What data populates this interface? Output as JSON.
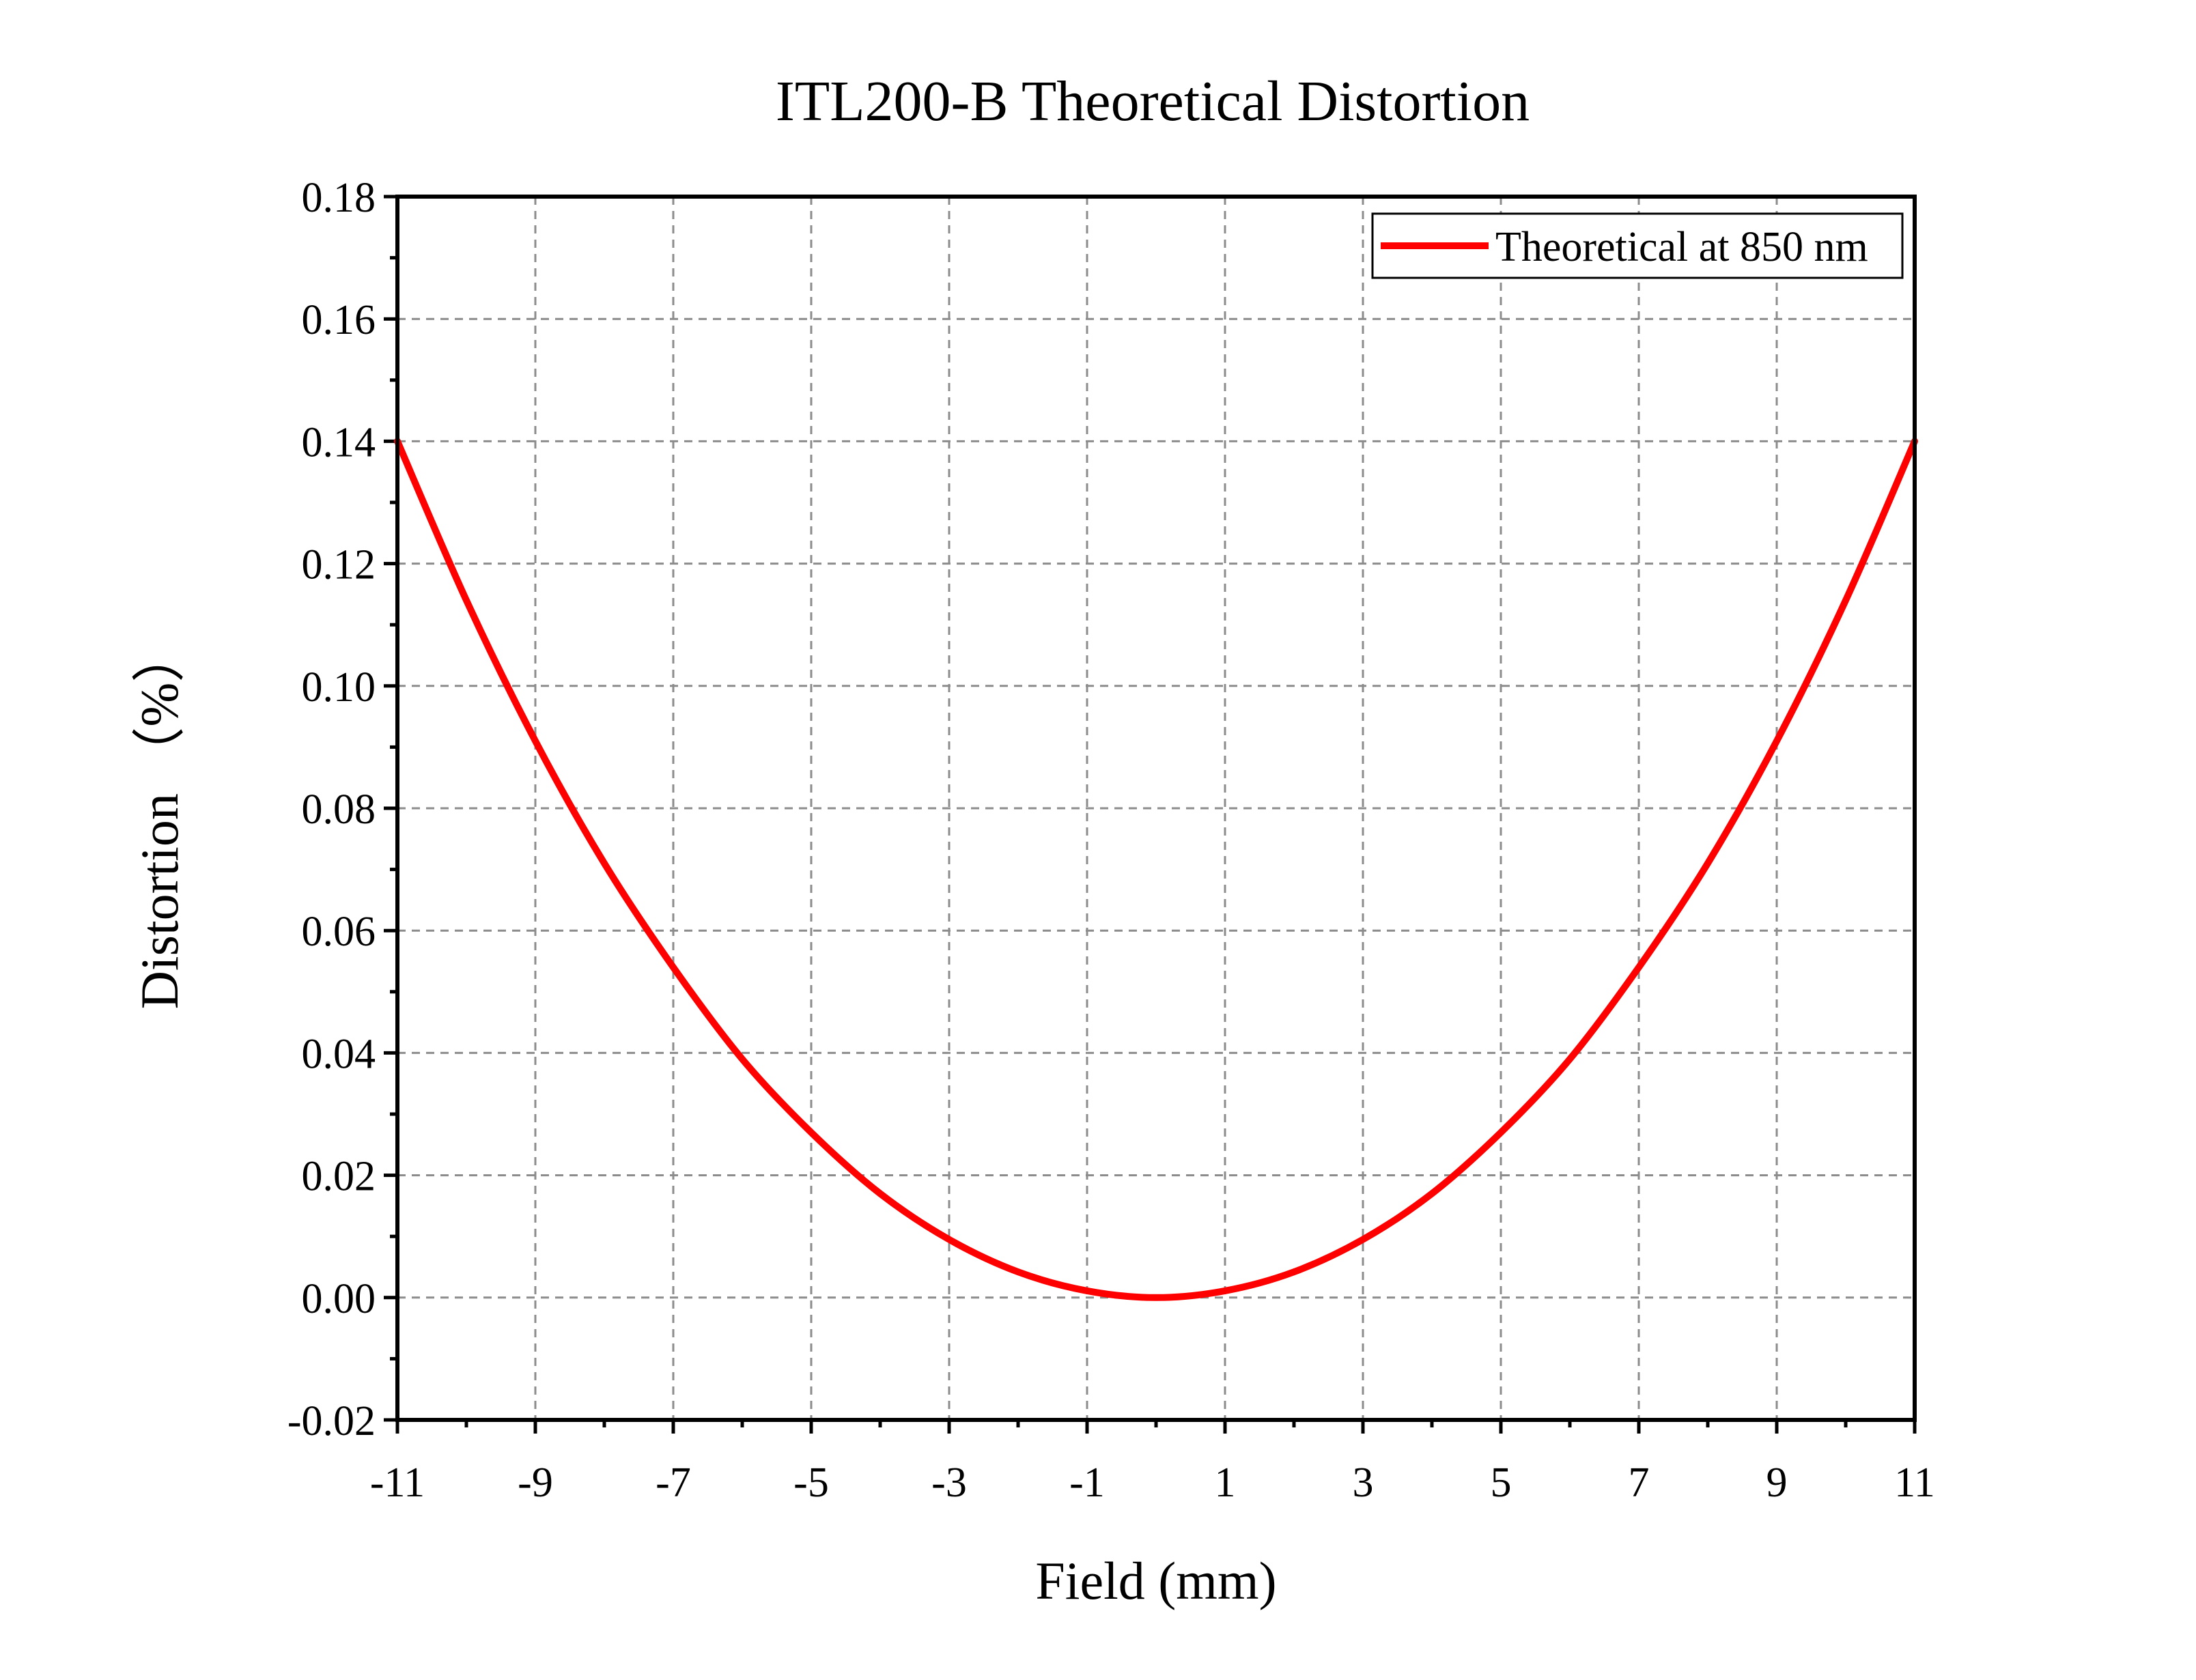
{
  "chart_data": {
    "type": "line",
    "title": "ITL200-B Theoretical Distortion",
    "xlabel": "Field (mm)",
    "ylabel": "Distortion （%）",
    "xlim": [
      -11,
      11
    ],
    "ylim": [
      -0.02,
      0.18
    ],
    "x_ticks": [
      "-11",
      "-9",
      "-7",
      "-5",
      "-3",
      "-1",
      "1",
      "3",
      "5",
      "7",
      "9",
      "11"
    ],
    "y_ticks": [
      "-0.02",
      "0.00",
      "0.02",
      "0.04",
      "0.06",
      "0.08",
      "0.10",
      "0.12",
      "0.14",
      "0.16",
      "0.18"
    ],
    "grid": true,
    "legend_position": "top-right",
    "series": [
      {
        "name": "Theoretical at 850 nm",
        "color": "#ff0000",
        "x": [
          -11,
          -10,
          -9,
          -8,
          -7,
          -6,
          -5,
          -4,
          -3,
          -2,
          -1,
          0,
          1,
          2,
          3,
          4,
          5,
          6,
          7,
          8,
          9,
          10,
          11
        ],
        "y": [
          0.14,
          0.114,
          0.091,
          0.071,
          0.054,
          0.039,
          0.027,
          0.017,
          0.0095,
          0.0042,
          0.0011,
          0.0,
          0.0011,
          0.0042,
          0.0095,
          0.017,
          0.027,
          0.039,
          0.054,
          0.071,
          0.091,
          0.114,
          0.14
        ]
      }
    ]
  }
}
